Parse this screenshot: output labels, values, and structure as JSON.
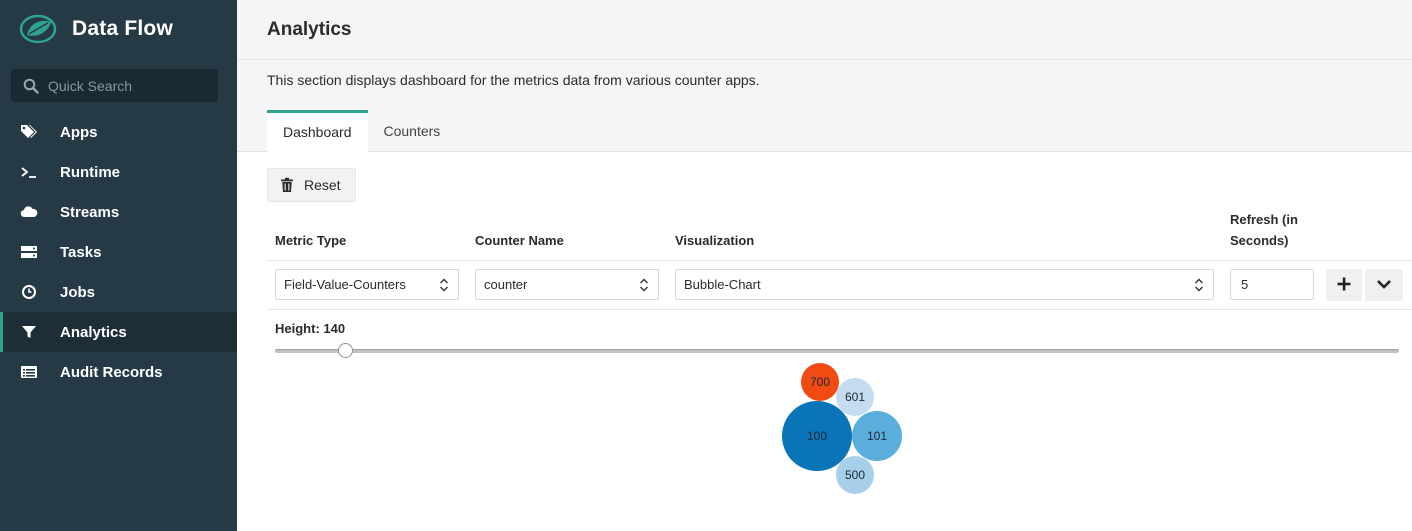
{
  "app": {
    "name": "Data Flow"
  },
  "search": {
    "placeholder": "Quick Search"
  },
  "sidebar": {
    "items": [
      {
        "label": "Apps",
        "icon": "tags-icon"
      },
      {
        "label": "Runtime",
        "icon": "terminal-icon"
      },
      {
        "label": "Streams",
        "icon": "cloud-icon"
      },
      {
        "label": "Tasks",
        "icon": "server-icon"
      },
      {
        "label": "Jobs",
        "icon": "clock-icon"
      },
      {
        "label": "Analytics",
        "icon": "filter-icon",
        "active": true
      },
      {
        "label": "Audit Records",
        "icon": "list-icon"
      }
    ]
  },
  "page": {
    "title": "Analytics",
    "description": "This section displays dashboard for the metrics data from various counter apps."
  },
  "tabs": [
    {
      "label": "Dashboard",
      "active": true
    },
    {
      "label": "Counters",
      "active": false
    }
  ],
  "toolbar": {
    "reset_label": "Reset"
  },
  "table": {
    "headers": {
      "metric_type": "Metric Type",
      "counter_name": "Counter Name",
      "visualization": "Visualization",
      "refresh_line1": "Refresh (in",
      "refresh_line2": "Seconds)"
    },
    "row": {
      "metric_type": "Field-Value-Counters",
      "counter_name": "counter",
      "visualization": "Bubble-Chart",
      "refresh": "5"
    }
  },
  "height_control": {
    "label": "Height: 140",
    "value": 140
  },
  "chart_data": {
    "type": "bubble",
    "bubbles": [
      {
        "label": "100",
        "value": 100
      },
      {
        "label": "101",
        "value": 101
      },
      {
        "label": "500",
        "value": 500
      },
      {
        "label": "601",
        "value": 601
      },
      {
        "label": "700",
        "value": 700
      }
    ]
  },
  "colors": {
    "sidebar_bg": "#253a45",
    "accent": "#2ea38f",
    "bubble_100": "#0a74b9",
    "bubble_101": "#5aaedb",
    "bubble_500": "#a7cfe9",
    "bubble_601": "#c4dcef",
    "bubble_700": "#f04b12"
  }
}
